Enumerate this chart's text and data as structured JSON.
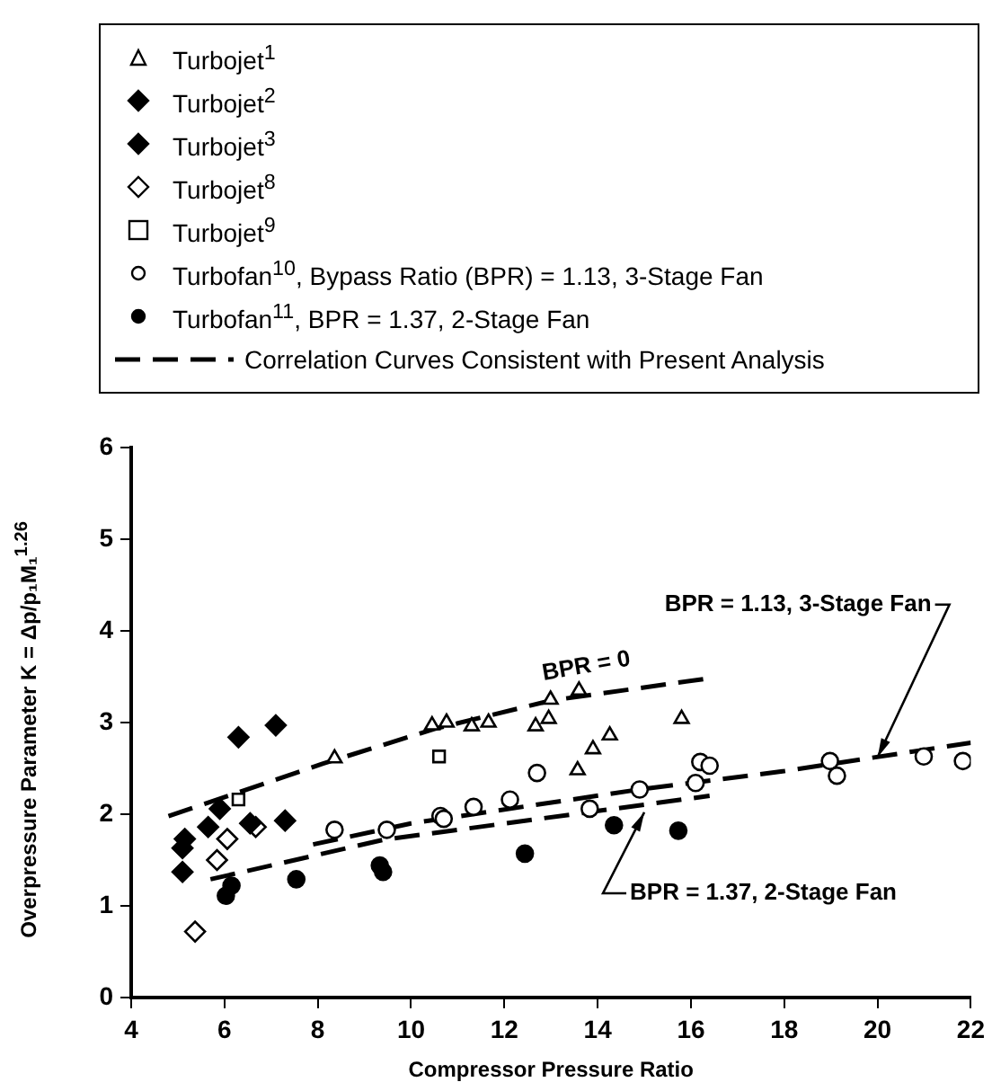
{
  "chart_data": {
    "type": "scatter",
    "xlabel": "Compressor Pressure Ratio",
    "ylabel": "Overpressure Parameter K = Δp/p₁M₁$^{1.26}$",
    "xlim": [
      4,
      22
    ],
    "xticks": [
      4,
      6,
      8,
      10,
      12,
      14,
      16,
      18,
      20,
      22
    ],
    "ylim": [
      0,
      6
    ],
    "yticks": [
      0,
      1,
      2,
      3,
      4,
      5,
      6
    ],
    "grid": false,
    "legend": "top",
    "series": [
      {
        "name": "Turbojet$^{1}$",
        "color": "#000000",
        "marker": "triangle-open",
        "x": [
          8.36,
          10.45,
          10.76,
          11.3,
          11.66,
          12.67,
          12.95,
          12.99,
          13.6,
          13.57,
          13.9,
          14.26,
          15.8
        ],
        "values": [
          2.61,
          2.97,
          3.0,
          2.96,
          3.0,
          2.96,
          3.04,
          3.25,
          3.35,
          2.48,
          2.71,
          2.86,
          3.04
        ]
      },
      {
        "name": "Turbojet$^{2}$",
        "color": "#000000",
        "marker": "diamond",
        "x": [
          5.1,
          5.1,
          5.65,
          5.9,
          6.55,
          7.3
        ],
        "values": [
          1.63,
          1.37,
          1.86,
          2.06,
          1.9,
          1.93
        ]
      },
      {
        "name": "Turbojet$^{3}$",
        "color": "#000000",
        "marker": "diamond",
        "x": [
          6.3,
          7.1,
          5.15
        ],
        "values": [
          2.84,
          2.97,
          1.73
        ]
      },
      {
        "name": "Turbojet$^{8}$",
        "color": "#000000",
        "marker": "diamond-open",
        "x": [
          5.37,
          5.84,
          6.06,
          6.67
        ],
        "values": [
          0.72,
          1.5,
          1.73,
          1.86
        ]
      },
      {
        "name": "Turbojet$^{9}$",
        "color": "#000000",
        "marker": "square-open",
        "x": [
          6.3,
          10.6
        ],
        "values": [
          2.16,
          2.63
        ]
      },
      {
        "name": "Turbofan$^{10}$, Bypass Ratio (BPR) = 1.13, 3-Stage Fan",
        "color": "#000000",
        "marker": "circle-open",
        "x": [
          8.36,
          9.48,
          10.63,
          10.7,
          11.34,
          12.12,
          12.7,
          13.83,
          14.9,
          16.1,
          16.2,
          16.4,
          18.98,
          19.13,
          20.99,
          21.83
        ],
        "values": [
          1.83,
          1.83,
          1.98,
          1.95,
          2.08,
          2.16,
          2.45,
          2.06,
          2.27,
          2.34,
          2.57,
          2.53,
          2.58,
          2.42,
          2.63,
          2.58
        ]
      },
      {
        "name": "Turbofan$^{11}$, BPR = 1.37, 2-Stage Fan",
        "color": "#000000",
        "marker": "circle",
        "x": [
          6.03,
          6.15,
          7.54,
          9.33,
          9.4,
          12.44,
          14.35,
          15.73
        ],
        "values": [
          1.11,
          1.22,
          1.29,
          1.44,
          1.37,
          1.57,
          1.88,
          1.82
        ]
      },
      {
        "name": "Correlation Curves Consistent with Present Analysis",
        "type": "line",
        "line_style": "dashed",
        "marker": "none",
        "color": "#000000",
        "x": [
          4.8,
          8.1,
          10.5,
          13,
          16.35
        ],
        "values": [
          1.98,
          2.55,
          2.93,
          3.24,
          3.48
        ]
      },
      {
        "type": "line",
        "line_style": "dashed",
        "marker": "none",
        "color": "#000000",
        "x": [
          7.9,
          10,
          14.9,
          18,
          22
        ],
        "values": [
          1.67,
          1.9,
          2.27,
          2.47,
          2.78
        ]
      },
      {
        "type": "line",
        "line_style": "dashed",
        "marker": "none",
        "color": "#000000",
        "x": [
          5.7,
          9.4,
          16.4
        ],
        "values": [
          1.29,
          1.72,
          2.2
        ]
      }
    ],
    "annotations": [
      {
        "text": "BPR = 0",
        "x": 13.8,
        "y": 3.33
      },
      {
        "text": "BPR = 1.13, 3-Stage Fan",
        "x": 20,
        "y": 2.62
      },
      {
        "text": "BPR = 1.37, 2-Stage Fan",
        "x": 15,
        "y": 2.02
      }
    ]
  }
}
